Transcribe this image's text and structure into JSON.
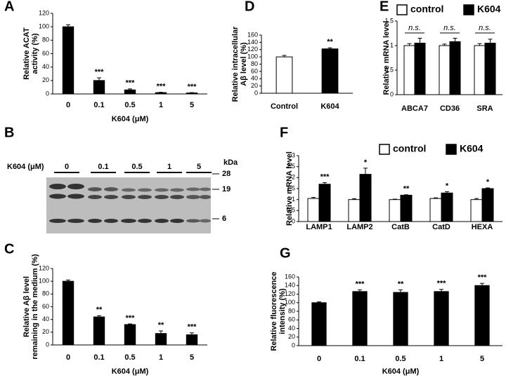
{
  "chart_data": [
    {
      "type": "bar",
      "panel": "A",
      "ylabel": [
        "Relative ACAT",
        "activity (%)"
      ],
      "xlabel": "K604  (μM)",
      "categories": [
        "0",
        "0.1",
        "0.5",
        "1",
        "5"
      ],
      "values": [
        100,
        20,
        6,
        2,
        1.5
      ],
      "errors": [
        3,
        4,
        1.5,
        0.5,
        0.5
      ],
      "annotations": [
        null,
        "***",
        "***",
        "***",
        "***"
      ],
      "color": "#000000",
      "ylim": [
        0,
        120
      ],
      "yticks": [
        0,
        20,
        40,
        60,
        80,
        100,
        120
      ]
    },
    {
      "type": "bar",
      "panel": "C",
      "ylabel": [
        "Relative Aβ level",
        "remaining in the medium (%)"
      ],
      "xlabel": "K604  (μM)",
      "categories": [
        "0",
        "0.1",
        "0.5",
        "1",
        "5"
      ],
      "values": [
        100,
        44,
        32,
        18,
        16
      ],
      "errors": [
        2,
        2,
        1,
        4,
        3
      ],
      "annotations": [
        null,
        "**",
        "***",
        "**",
        "***"
      ],
      "color": "#000000",
      "ylim": [
        0,
        120
      ],
      "yticks": [
        0,
        20,
        40,
        60,
        80,
        100,
        120
      ]
    },
    {
      "type": "bar",
      "panel": "D",
      "ylabel": [
        "Relative intracellular",
        "Aβ level (%)"
      ],
      "categories": [
        "Control",
        "K604"
      ],
      "values": [
        100,
        122
      ],
      "errors": [
        4,
        3
      ],
      "annotations": [
        null,
        "**"
      ],
      "colors": [
        "#ffffff",
        "#000000"
      ],
      "ylim": [
        0,
        160
      ],
      "yticks": [
        0,
        20,
        40,
        60,
        80,
        100,
        120,
        140,
        160
      ]
    },
    {
      "type": "grouped_bar",
      "panel": "E",
      "ylabel": [
        "Relative mRNA level"
      ],
      "categories": [
        "ABCA7",
        "CD36",
        "SRA"
      ],
      "annotations": [
        "n.s.",
        "n.s.",
        "n.s."
      ],
      "series": [
        {
          "name": "control",
          "color": "#ffffff",
          "values": [
            1,
            1,
            1
          ],
          "errors": [
            0.04,
            0.03,
            0.04
          ]
        },
        {
          "name": "K604",
          "color": "#000000",
          "values": [
            1.05,
            1.08,
            1.05
          ],
          "errors": [
            0.1,
            0.07,
            0.08
          ]
        }
      ],
      "ylim": [
        0,
        1.5
      ],
      "yticks": [
        0,
        0.5,
        1,
        1.5
      ],
      "legend": "top"
    },
    {
      "type": "grouped_bar",
      "panel": "F",
      "ylabel": [
        "Relative mRNA level"
      ],
      "categories": [
        "LAMP1",
        "LAMP2",
        "CatB",
        "CatD",
        "HEXA"
      ],
      "series": [
        {
          "name": "control",
          "color": "#ffffff",
          "values": [
            1.05,
            1,
            1,
            1.05,
            1
          ],
          "errors": [
            0.05,
            0.04,
            0.02,
            0.03,
            0.05
          ]
        },
        {
          "name": "K604",
          "color": "#000000",
          "values": [
            1.7,
            2.15,
            1.2,
            1.3,
            1.5
          ],
          "errors": [
            0.07,
            0.28,
            0.02,
            0.06,
            0.03
          ],
          "annotations": [
            "***",
            "*",
            "**",
            "*",
            "*"
          ]
        }
      ],
      "ylim": [
        0,
        3
      ],
      "yticks": [
        0,
        0.5,
        1,
        1.5,
        2,
        2.5,
        3
      ],
      "legend": "top right"
    },
    {
      "type": "bar",
      "panel": "G",
      "ylabel": [
        "Relative fluorescence",
        "intensity (%)"
      ],
      "xlabel": "K604  (μM)",
      "categories": [
        "0",
        "0.1",
        "0.5",
        "1",
        "5"
      ],
      "values": [
        100,
        126,
        124,
        126,
        140
      ],
      "errors": [
        2,
        4,
        6,
        5,
        5
      ],
      "annotations": [
        null,
        "***",
        "**",
        "***",
        "***"
      ],
      "color": "#000000",
      "ylim": [
        0,
        160
      ],
      "yticks": [
        0,
        20,
        40,
        60,
        80,
        100,
        120,
        140,
        160
      ]
    }
  ],
  "blot": {
    "panel": "B",
    "treatment": "K604  (μM)",
    "lanes": [
      "0",
      "0.1",
      "0.5",
      "1",
      "5"
    ],
    "unit": "kDa",
    "markers": [
      "28",
      "19",
      "6"
    ]
  }
}
